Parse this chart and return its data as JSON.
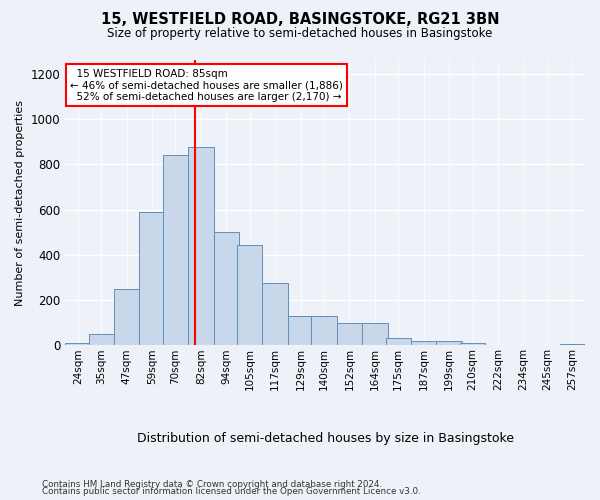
{
  "title": "15, WESTFIELD ROAD, BASINGSTOKE, RG21 3BN",
  "subtitle": "Size of property relative to semi-detached houses in Basingstoke",
  "xlabel": "Distribution of semi-detached houses by size in Basingstoke",
  "ylabel": "Number of semi-detached properties",
  "footnote1": "Contains HM Land Registry data © Crown copyright and database right 2024.",
  "footnote2": "Contains public sector information licensed under the Open Government Licence v3.0.",
  "annotation_title": "15 WESTFIELD ROAD: 85sqm",
  "annotation_line1": "← 46% of semi-detached houses are smaller (1,886)",
  "annotation_line2": "52% of semi-detached houses are larger (2,170) →",
  "property_size": 85,
  "bar_color": "#c8d8ea",
  "bar_edge_color": "#6090b8",
  "vline_color": "red",
  "annotation_box_color": "white",
  "annotation_box_edge": "red",
  "background_color": "#eef2f8",
  "grid_color": "#ffffff",
  "categories": [
    "24sqm",
    "35sqm",
    "47sqm",
    "59sqm",
    "70sqm",
    "82sqm",
    "94sqm",
    "105sqm",
    "117sqm",
    "129sqm",
    "140sqm",
    "152sqm",
    "164sqm",
    "175sqm",
    "187sqm",
    "199sqm",
    "210sqm",
    "222sqm",
    "234sqm",
    "245sqm",
    "257sqm"
  ],
  "bin_starts": [
    24,
    35,
    47,
    59,
    70,
    82,
    94,
    105,
    117,
    129,
    140,
    152,
    164,
    175,
    187,
    199,
    210,
    222,
    234,
    245,
    257
  ],
  "bin_width": 12,
  "values": [
    10,
    50,
    250,
    590,
    840,
    875,
    500,
    445,
    275,
    130,
    130,
    100,
    100,
    35,
    18,
    18,
    12,
    4,
    2,
    1,
    8
  ],
  "ylim": [
    0,
    1260
  ],
  "yticks": [
    0,
    200,
    400,
    600,
    800,
    1000,
    1200
  ]
}
